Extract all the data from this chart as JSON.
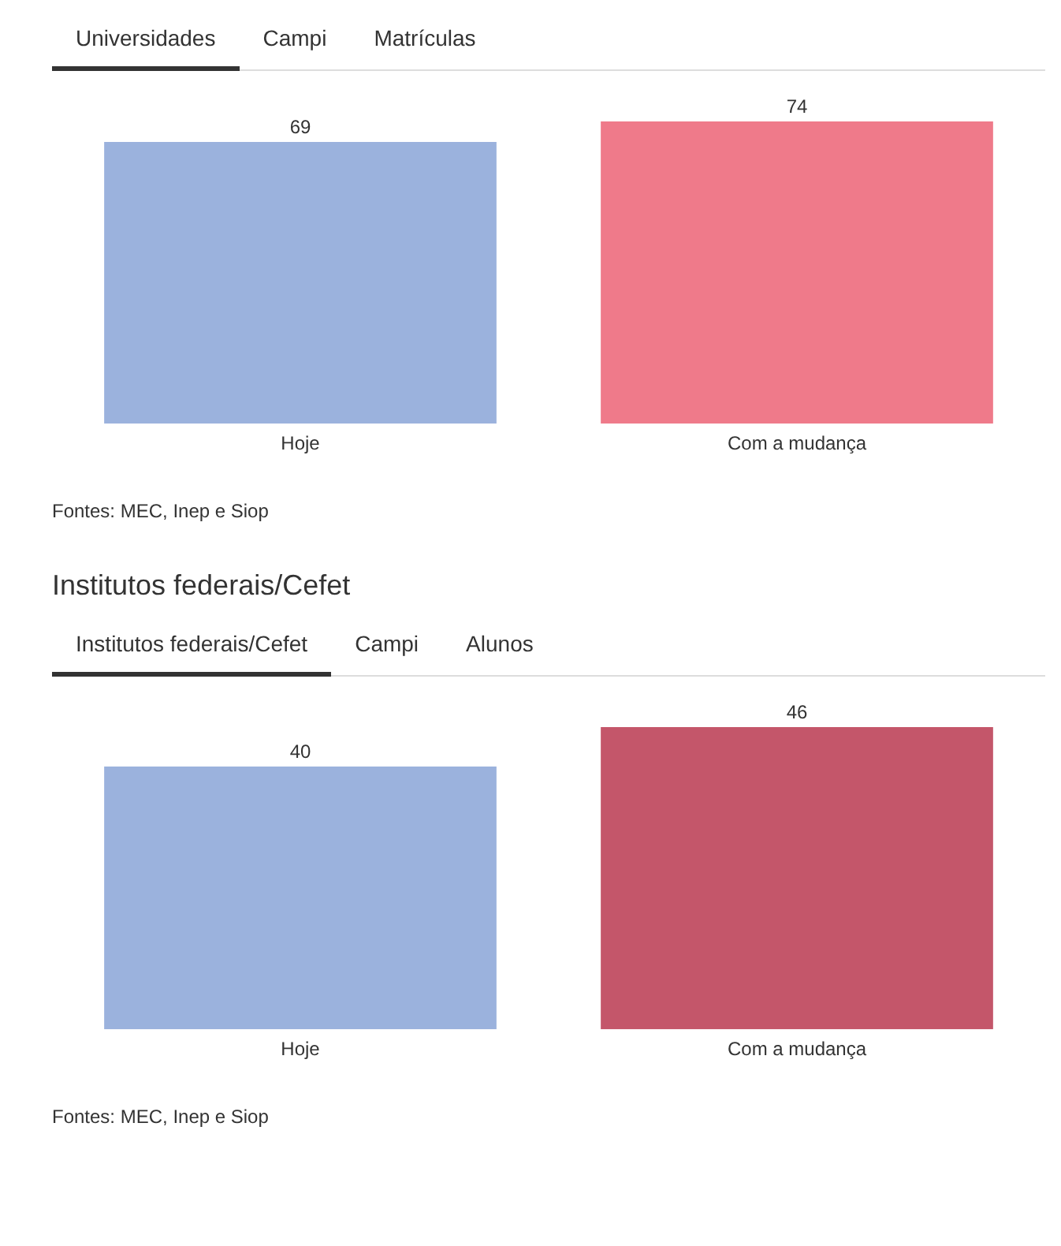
{
  "chart_data": [
    {
      "type": "bar",
      "categories": [
        "Hoje",
        "Com a mudança"
      ],
      "values": [
        69,
        74
      ],
      "colors": [
        "#9bb2dd",
        "#ef7a8a"
      ],
      "data_labels": true,
      "grid": false,
      "legend": false,
      "tick_labels": "x",
      "annotations": [
        "Universidades",
        "Campi",
        "Matrículas",
        "Fontes: MEC, Inep e Siop"
      ]
    },
    {
      "type": "bar",
      "title": "Institutos federais/Cefet",
      "categories": [
        "Hoje",
        "Com a mudança"
      ],
      "values": [
        40,
        46
      ],
      "colors": [
        "#9bb2dd",
        "#c4566a"
      ],
      "data_labels": true,
      "grid": false,
      "legend": false,
      "tick_labels": "x",
      "annotations": [
        "Institutos federais/Cefet",
        "Campi",
        "Alunos",
        "Fontes: MEC, Inep e Siop"
      ]
    }
  ]
}
